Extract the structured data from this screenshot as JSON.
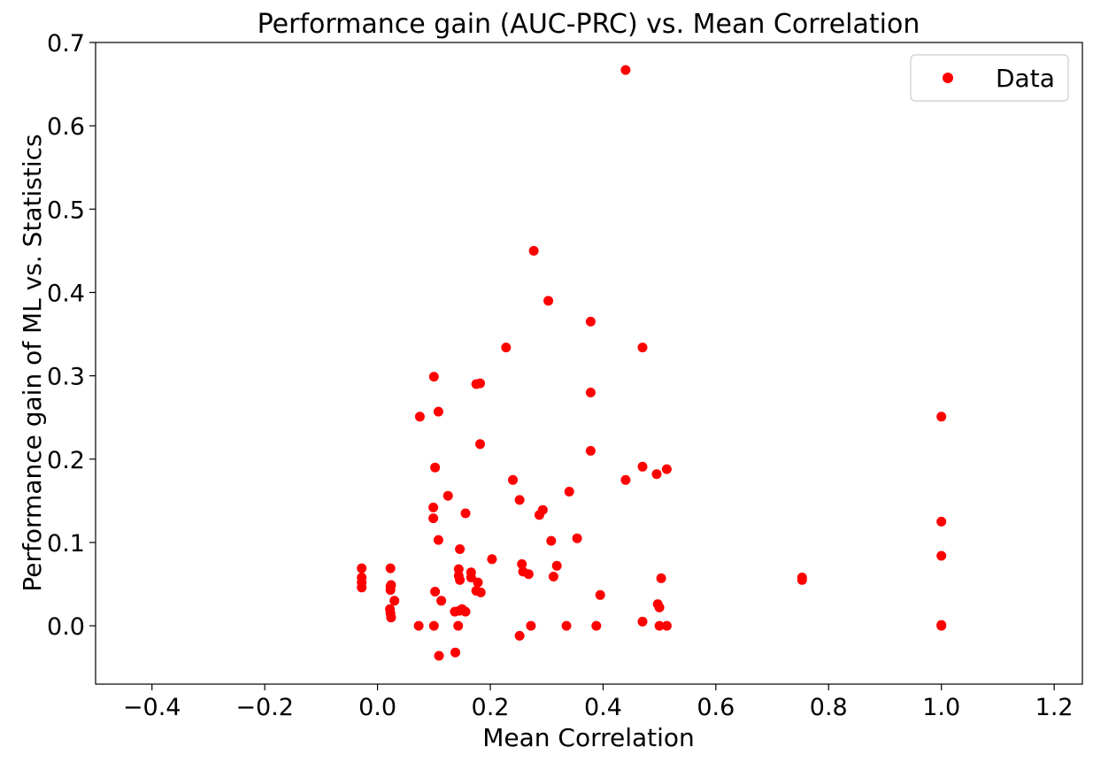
{
  "chart_data": {
    "type": "scatter",
    "title": "Performance gain (AUC-PRC) vs. Mean Correlation",
    "xlabel": "Mean Correlation",
    "ylabel": "Performance gain of ML vs. Statistics",
    "xlim": [
      -0.5,
      1.25
    ],
    "ylim": [
      -0.07,
      0.7
    ],
    "xticks": [
      -0.4,
      -0.2,
      0.0,
      0.2,
      0.4,
      0.6,
      0.8,
      1.0,
      1.2
    ],
    "xtick_labels": [
      "−0.4",
      "−0.2",
      "0.0",
      "0.2",
      "0.4",
      "0.6",
      "0.8",
      "1.0",
      "1.2"
    ],
    "yticks": [
      0.0,
      0.1,
      0.2,
      0.3,
      0.4,
      0.5,
      0.6,
      0.7
    ],
    "ytick_labels": [
      "0.0",
      "0.1",
      "0.2",
      "0.3",
      "0.4",
      "0.5",
      "0.6",
      "0.7"
    ],
    "grid": false,
    "legend_position": "top-right",
    "series": [
      {
        "name": "Data",
        "color": "#ff0000",
        "marker": "circle",
        "points": [
          [
            0.44,
            0.667
          ],
          [
            0.277,
            0.45
          ],
          [
            0.303,
            0.39
          ],
          [
            0.378,
            0.365
          ],
          [
            0.228,
            0.334
          ],
          [
            0.47,
            0.334
          ],
          [
            0.1,
            0.299
          ],
          [
            0.175,
            0.29
          ],
          [
            0.182,
            0.291
          ],
          [
            0.378,
            0.28
          ],
          [
            0.075,
            0.251
          ],
          [
            0.108,
            0.257
          ],
          [
            1.0,
            0.251
          ],
          [
            0.182,
            0.218
          ],
          [
            0.378,
            0.21
          ],
          [
            0.102,
            0.19
          ],
          [
            0.47,
            0.191
          ],
          [
            0.495,
            0.182
          ],
          [
            0.513,
            0.188
          ],
          [
            0.24,
            0.175
          ],
          [
            0.44,
            0.175
          ],
          [
            0.34,
            0.161
          ],
          [
            0.125,
            0.156
          ],
          [
            0.252,
            0.151
          ],
          [
            0.099,
            0.142
          ],
          [
            0.156,
            0.135
          ],
          [
            0.293,
            0.139
          ],
          [
            0.287,
            0.133
          ],
          [
            0.099,
            0.129
          ],
          [
            1.0,
            0.125
          ],
          [
            0.108,
            0.103
          ],
          [
            0.308,
            0.102
          ],
          [
            0.354,
            0.105
          ],
          [
            0.146,
            0.092
          ],
          [
            1.0,
            0.084
          ],
          [
            0.203,
            0.08
          ],
          [
            -0.028,
            0.069
          ],
          [
            0.023,
            0.069
          ],
          [
            0.144,
            0.068
          ],
          [
            0.166,
            0.064
          ],
          [
            0.256,
            0.074
          ],
          [
            0.318,
            0.072
          ],
          [
            -0.028,
            0.058
          ],
          [
            -0.028,
            0.052
          ],
          [
            -0.028,
            0.046
          ],
          [
            0.023,
            0.047
          ],
          [
            0.023,
            0.043
          ],
          [
            0.024,
            0.049
          ],
          [
            0.144,
            0.06
          ],
          [
            0.146,
            0.055
          ],
          [
            0.166,
            0.058
          ],
          [
            0.178,
            0.052
          ],
          [
            0.258,
            0.065
          ],
          [
            0.268,
            0.062
          ],
          [
            0.312,
            0.059
          ],
          [
            0.503,
            0.057
          ],
          [
            0.753,
            0.055
          ],
          [
            0.753,
            0.058
          ],
          [
            0.102,
            0.041
          ],
          [
            0.175,
            0.042
          ],
          [
            0.183,
            0.04
          ],
          [
            0.395,
            0.037
          ],
          [
            0.03,
            0.03
          ],
          [
            0.113,
            0.03
          ],
          [
            0.022,
            0.02
          ],
          [
            0.023,
            0.015
          ],
          [
            0.024,
            0.01
          ],
          [
            0.137,
            0.017
          ],
          [
            0.145,
            0.018
          ],
          [
            0.15,
            0.02
          ],
          [
            0.156,
            0.017
          ],
          [
            0.497,
            0.026
          ],
          [
            0.5,
            0.022
          ],
          [
            0.073,
            0.0
          ],
          [
            0.1,
            0.0
          ],
          [
            0.143,
            0.0
          ],
          [
            0.272,
            0.0
          ],
          [
            0.335,
            0.0
          ],
          [
            0.388,
            0.0
          ],
          [
            0.47,
            0.005
          ],
          [
            0.5,
            0.0
          ],
          [
            0.513,
            0.0
          ],
          [
            1.0,
            0.0
          ],
          [
            1.0,
            0.001
          ],
          [
            0.252,
            -0.012
          ],
          [
            0.138,
            -0.032
          ],
          [
            0.109,
            -0.036
          ]
        ]
      }
    ]
  }
}
